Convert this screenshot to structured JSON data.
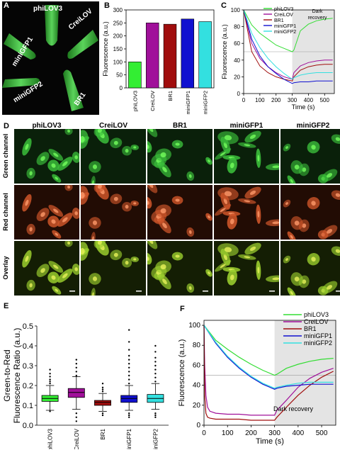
{
  "panels": {
    "A": {
      "label": "A",
      "tubes": [
        "phiLOV3",
        "CreiLOV",
        "miniGFP1",
        "miniGFP2",
        "BR1"
      ]
    },
    "B": {
      "label": "B"
    },
    "C": {
      "label": "C"
    },
    "D": {
      "label": "D",
      "columns": [
        "phiLOV3",
        "CreiLOV",
        "BR1",
        "miniGFP1",
        "miniGFP2"
      ],
      "rows": [
        "Green channel",
        "Red channel",
        "Overlay"
      ]
    },
    "E": {
      "label": "E"
    },
    "F": {
      "label": "F"
    }
  },
  "chart_data": [
    {
      "id": "B",
      "type": "bar",
      "categories": [
        "phiLOV3",
        "CreiLOV",
        "BR1",
        "miniGFP1",
        "miniGFP2"
      ],
      "values": [
        100,
        250,
        245,
        265,
        255
      ],
      "colors": [
        "#33ee33",
        "#a0109a",
        "#a00d0d",
        "#1010d0",
        "#33e0e0"
      ],
      "ylabel": "Fluorescence (a.u.)",
      "ylim": [
        0,
        300
      ],
      "yticks": [
        0,
        50,
        100,
        150,
        200,
        250,
        300
      ]
    },
    {
      "id": "C",
      "type": "line",
      "xlabel": "Time (s)",
      "ylabel": "Fluorescence (a.u.)",
      "xlim": [
        0,
        560
      ],
      "ylim": [
        0,
        100
      ],
      "xticks": [
        0,
        100,
        200,
        300,
        400,
        500
      ],
      "yticks": [
        0,
        20,
        40,
        60,
        80,
        100
      ],
      "annotation": "Dark\nrecovery",
      "legend": "top-right",
      "series": [
        {
          "name": "phiLOV3",
          "color": "#33dd33",
          "x": [
            0,
            50,
            100,
            150,
            200,
            250,
            300,
            310,
            350,
            400,
            450,
            500,
            550
          ],
          "y": [
            100,
            82,
            72,
            65,
            58,
            54,
            50,
            52,
            75,
            83,
            87,
            89,
            90
          ]
        },
        {
          "name": "CreiLOV",
          "color": "#a0109a",
          "x": [
            0,
            50,
            100,
            150,
            200,
            250,
            300,
            310,
            350,
            400,
            450,
            500,
            550
          ],
          "y": [
            100,
            60,
            42,
            32,
            25,
            20,
            17,
            25,
            33,
            37,
            39,
            40,
            40
          ]
        },
        {
          "name": "BR1",
          "color": "#a00d0d",
          "x": [
            0,
            50,
            100,
            150,
            200,
            250,
            300,
            310,
            350,
            400,
            450,
            500,
            550
          ],
          "y": [
            100,
            50,
            33,
            25,
            20,
            17,
            15,
            20,
            28,
            32,
            34,
            35,
            35
          ]
        },
        {
          "name": "miniGFP1",
          "color": "#1010d0",
          "x": [
            0,
            50,
            100,
            150,
            200,
            250,
            300,
            310,
            350,
            400,
            450,
            500,
            550
          ],
          "y": [
            100,
            65,
            45,
            32,
            24,
            17,
            12,
            13,
            14,
            14,
            15,
            15,
            15
          ]
        },
        {
          "name": "miniGFP2",
          "color": "#33e0e0",
          "x": [
            0,
            50,
            100,
            150,
            200,
            250,
            300,
            310,
            350,
            400,
            450,
            500,
            550
          ],
          "y": [
            100,
            72,
            55,
            42,
            32,
            24,
            17,
            19,
            22,
            24,
            25,
            25,
            25
          ]
        }
      ]
    },
    {
      "id": "E",
      "type": "box",
      "categories": [
        "phiLOV3",
        "CreiLOV",
        "BR1",
        "miniGFP1",
        "miniGFP2"
      ],
      "colors": [
        "#33ee33",
        "#a0109a",
        "#a00d0d",
        "#1010d0",
        "#33e0e0"
      ],
      "ylabel": "Green-to-Red\nFluorescence Ratio (a.u.)",
      "ylim": [
        0,
        0.5
      ],
      "yticks": [
        "0.0",
        "0.1",
        "0.2",
        "0.3",
        "0.4",
        "0.5"
      ],
      "boxes": [
        {
          "whisker_low": 0.075,
          "q1": 0.12,
          "median": 0.135,
          "q3": 0.15,
          "whisker_high": 0.2,
          "outliers": [
            0.21,
            0.22,
            0.23,
            0.245,
            0.26,
            0.28,
            0.07
          ]
        },
        {
          "whisker_low": 0.08,
          "q1": 0.14,
          "median": 0.165,
          "q3": 0.185,
          "whisker_high": 0.245,
          "outliers": [
            0.25,
            0.27,
            0.29,
            0.31,
            0.33,
            0.06,
            0.04,
            0.02
          ]
        },
        {
          "whisker_low": 0.07,
          "q1": 0.1,
          "median": 0.115,
          "q3": 0.125,
          "whisker_high": 0.16,
          "outliers": [
            0.17,
            0.18,
            0.19,
            0.21,
            0.06,
            0.05
          ]
        },
        {
          "whisker_low": 0.075,
          "q1": 0.115,
          "median": 0.135,
          "q3": 0.15,
          "whisker_high": 0.2,
          "outliers": [
            0.21,
            0.23,
            0.25,
            0.27,
            0.29,
            0.31,
            0.33,
            0.35,
            0.38,
            0.42,
            0.48,
            0.06,
            0.05,
            0.04
          ]
        },
        {
          "whisker_low": 0.08,
          "q1": 0.115,
          "median": 0.135,
          "q3": 0.155,
          "whisker_high": 0.21,
          "outliers": [
            0.22,
            0.24,
            0.26,
            0.28,
            0.3,
            0.32,
            0.34,
            0.37,
            0.4,
            0.06,
            0.05,
            0.04
          ]
        }
      ]
    },
    {
      "id": "F",
      "type": "line",
      "xlabel": "Time (s)",
      "ylabel": "Fluorescence (a.u.)",
      "xlim": [
        0,
        560
      ],
      "ylim": [
        0,
        105
      ],
      "xticks": [
        0,
        100,
        200,
        300,
        400,
        500
      ],
      "yticks": [
        0,
        20,
        40,
        60,
        80,
        100
      ],
      "annotation": "Dark recovery",
      "legend": "top-right",
      "series": [
        {
          "name": "phiLOV3",
          "color": "#33dd33",
          "x": [
            0,
            50,
            100,
            150,
            200,
            250,
            300,
            310,
            350,
            400,
            450,
            500,
            550
          ],
          "y": [
            100,
            85,
            76,
            68,
            61,
            55,
            50,
            51,
            57,
            61,
            64,
            66,
            67
          ]
        },
        {
          "name": "CreiLOV",
          "color": "#a0109a",
          "x": [
            0,
            3,
            8,
            15,
            25,
            50,
            100,
            150,
            200,
            250,
            300,
            310,
            350,
            400,
            450,
            500,
            550
          ],
          "y": [
            100,
            60,
            30,
            18,
            14,
            12,
            11,
            11,
            10,
            10,
            10,
            15,
            25,
            38,
            47,
            53,
            57
          ]
        },
        {
          "name": "BR1",
          "color": "#a00d0d",
          "x": [
            0,
            3,
            8,
            15,
            25,
            50,
            100,
            150,
            200,
            250,
            300,
            310,
            350,
            400,
            450,
            500,
            550
          ],
          "y": [
            100,
            30,
            12,
            8,
            7,
            6,
            6,
            6,
            5,
            5,
            5,
            8,
            18,
            30,
            40,
            48,
            54
          ]
        },
        {
          "name": "miniGFP1",
          "color": "#1010d0",
          "x": [
            0,
            50,
            100,
            150,
            200,
            250,
            300,
            310,
            350,
            400,
            450,
            500,
            550
          ],
          "y": [
            100,
            82,
            68,
            57,
            48,
            41,
            36,
            37,
            39,
            40,
            41,
            41,
            41
          ]
        },
        {
          "name": "miniGFP2",
          "color": "#33e0e0",
          "x": [
            0,
            50,
            100,
            150,
            200,
            250,
            300,
            310,
            350,
            400,
            450,
            500,
            550
          ],
          "y": [
            100,
            83,
            69,
            58,
            49,
            42,
            37,
            38,
            40,
            42,
            43,
            43,
            43
          ]
        }
      ]
    }
  ]
}
